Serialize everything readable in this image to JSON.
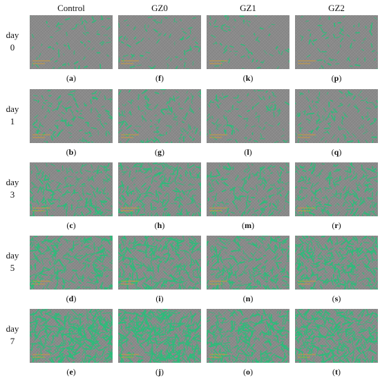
{
  "columns": [
    "Control",
    "GZ0",
    "GZ1",
    "GZ2"
  ],
  "rows": [
    {
      "label_word": "day",
      "label_num": "0"
    },
    {
      "label_word": "day",
      "label_num": "1"
    },
    {
      "label_word": "day",
      "label_num": "3"
    },
    {
      "label_word": "day",
      "label_num": "5"
    },
    {
      "label_word": "day",
      "label_num": "7"
    }
  ],
  "captions": [
    [
      "a",
      "f",
      "k",
      "p"
    ],
    [
      "b",
      "g",
      "l",
      "q"
    ],
    [
      "c",
      "h",
      "m",
      "r"
    ],
    [
      "d",
      "i",
      "n",
      "s"
    ],
    [
      "e",
      "j",
      "o",
      "t"
    ]
  ],
  "colors": {
    "background": "#8a8a8a",
    "cells": "#27c07a",
    "scale_bar": "#e0a020"
  },
  "cell_coverage": [
    [
      0.06,
      0.07,
      0.05,
      0.06
    ],
    [
      0.16,
      0.18,
      0.14,
      0.17
    ],
    [
      0.34,
      0.38,
      0.3,
      0.35
    ],
    [
      0.48,
      0.52,
      0.44,
      0.5
    ],
    [
      0.7,
      0.74,
      0.55,
      0.62
    ]
  ]
}
